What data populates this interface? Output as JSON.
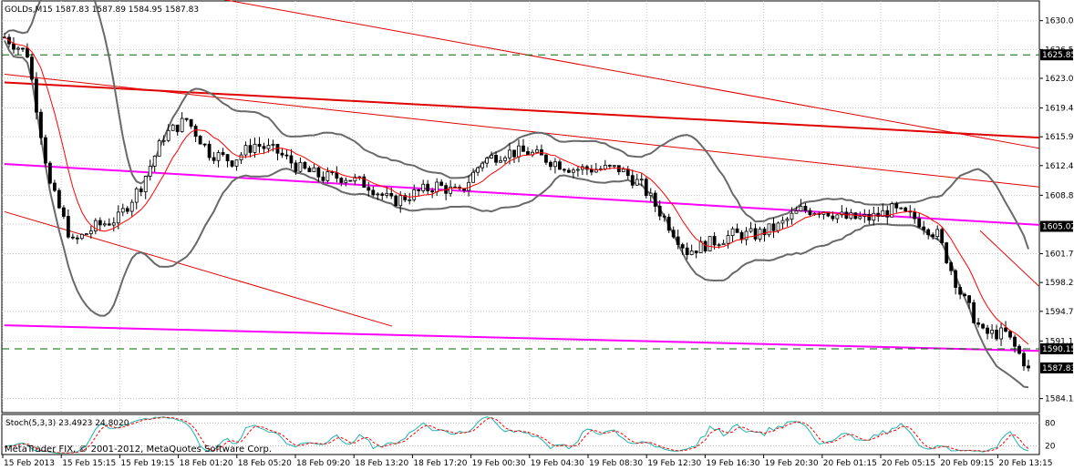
{
  "header": {
    "symbol_info": "GOLDs,M15  1587.83 1587.89 1584.95 1587.83"
  },
  "stoch_label": "Stoch(5,3,3) 23.4923 24.8020",
  "copyright": "MetaTrader FIX, © 2001-2012, MetaQuotes Software Corp.",
  "colors": {
    "bull": "#ffffff",
    "bear": "#000000",
    "bollinger": "#696969",
    "ma": "#ff0000",
    "trend_red": "#e00000",
    "trend_magenta": "#ff00ff",
    "hline": "#006400",
    "stoch_main": "#20b2aa",
    "stoch_signal": "#ff0000"
  },
  "chart_data": {
    "type": "candlestick",
    "symbol": "GOLDs",
    "timeframe": "M15",
    "ylim": [
      1582.4,
      1632.4
    ],
    "y_ticks": [
      "1630.00",
      "1626.50",
      "1623.00",
      "1619.40",
      "1615.90",
      "1612.40",
      "1608.80",
      "1605.30",
      "1601.70",
      "1598.20",
      "1594.70",
      "1591.10",
      "1584.10"
    ],
    "x_ticks": [
      "15 Feb 2013",
      "15 Feb 15:15",
      "15 Feb 19:15",
      "18 Feb 01:20",
      "18 Feb 05:20",
      "18 Feb 09:20",
      "18 Feb 13:20",
      "18 Feb 17:20",
      "19 Feb 00:30",
      "19 Feb 04:30",
      "19 Feb 08:30",
      "19 Feb 12:30",
      "19 Feb 16:30",
      "19 Feb 20:30",
      "20 Feb 01:15",
      "20 Feb 05:15",
      "20 Feb 09:15",
      "20 Feb 13:15"
    ],
    "price_labels": [
      {
        "value": 1625.85,
        "text": "1625.85",
        "style": "dark"
      },
      {
        "value": 1605.02,
        "text": "1605.02",
        "style": "dark"
      },
      {
        "value": 1590.15,
        "text": "1590.15",
        "style": "dark"
      },
      {
        "value": 1587.83,
        "text": "1587.83",
        "style": "dark"
      }
    ],
    "horizontal_lines": [
      1625.85,
      1590.15
    ],
    "anchors": [
      [
        0,
        1628
      ],
      [
        5,
        1626
      ],
      [
        10,
        1610
      ],
      [
        15,
        1603
      ],
      [
        20,
        1605
      ],
      [
        25,
        1606
      ],
      [
        30,
        1610
      ],
      [
        35,
        1616
      ],
      [
        40,
        1618
      ],
      [
        45,
        1614
      ],
      [
        50,
        1613
      ],
      [
        55,
        1615
      ],
      [
        60,
        1614
      ],
      [
        65,
        1612
      ],
      [
        70,
        1611
      ],
      [
        75,
        1611
      ],
      [
        80,
        1610
      ],
      [
        85,
        1608
      ],
      [
        90,
        1609
      ],
      [
        95,
        1610
      ],
      [
        100,
        1609
      ],
      [
        105,
        1613
      ],
      [
        110,
        1614
      ],
      [
        115,
        1614
      ],
      [
        120,
        1613
      ],
      [
        125,
        1612
      ],
      [
        130,
        1612
      ],
      [
        135,
        1612
      ],
      [
        140,
        1610
      ],
      [
        145,
        1606
      ],
      [
        150,
        1602
      ],
      [
        155,
        1603
      ],
      [
        160,
        1604
      ],
      [
        165,
        1604
      ],
      [
        170,
        1605
      ],
      [
        175,
        1607
      ],
      [
        180,
        1607
      ],
      [
        185,
        1606
      ],
      [
        190,
        1606
      ],
      [
        195,
        1607
      ],
      [
        200,
        1606
      ],
      [
        205,
        1604
      ],
      [
        210,
        1597
      ],
      [
        215,
        1592
      ],
      [
        220,
        1592
      ],
      [
        225,
        1587.8
      ]
    ],
    "stoch_levels": [
      80,
      20
    ],
    "stoch_ylim": [
      0,
      100
    ]
  }
}
